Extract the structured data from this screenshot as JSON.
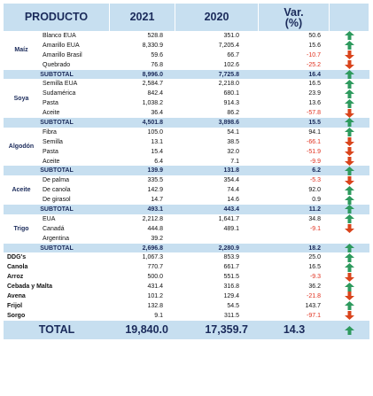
{
  "headers": {
    "product": "PRODUCTO",
    "y2021": "2021",
    "y2020": "2020",
    "var_line1": "Var.",
    "var_line2": "(%)"
  },
  "colors": {
    "header_bg": "#c7dff0",
    "up_arrow": "#2e9a5e",
    "down_arrow": "#d9441c",
    "negative_text": "#e0301e"
  },
  "groups": [
    {
      "name": "Maíz",
      "items": [
        {
          "label": "Blanco EUA",
          "v2021": "528.8",
          "v2020": "351.0",
          "var": "50.6",
          "dir": "up"
        },
        {
          "label": "Amarillo EUA",
          "v2021": "8,330.9",
          "v2020": "7,205.4",
          "var": "15.6",
          "dir": "up"
        },
        {
          "label": "Amarillo Brasil",
          "v2021": "59.6",
          "v2020": "66.7",
          "var": "-10.7",
          "dir": "down"
        },
        {
          "label": "Quebrado",
          "v2021": "76.8",
          "v2020": "102.6",
          "var": "-25.2",
          "dir": "down"
        }
      ],
      "subtotal": {
        "label": "SUBTOTAL",
        "v2021": "8,996.0",
        "v2020": "7,725.8",
        "var": "16.4",
        "dir": "up"
      }
    },
    {
      "name": "Soya",
      "items": [
        {
          "label": "Semilla EUA",
          "v2021": "2,584.7",
          "v2020": "2,218.0",
          "var": "16.5",
          "dir": "up"
        },
        {
          "label": "Sudamérica",
          "v2021": "842.4",
          "v2020": "680.1",
          "var": "23.9",
          "dir": "up"
        },
        {
          "label": "Pasta",
          "v2021": "1,038.2",
          "v2020": "914.3",
          "var": "13.6",
          "dir": "up"
        },
        {
          "label": "Aceite",
          "v2021": "36.4",
          "v2020": "86.2",
          "var": "-57.8",
          "dir": "down"
        }
      ],
      "subtotal": {
        "label": "SUBTOTAL",
        "v2021": "4,501.8",
        "v2020": "3,898.6",
        "var": "15.5",
        "dir": "up"
      }
    },
    {
      "name": "Algodón",
      "items": [
        {
          "label": "Fibra",
          "v2021": "105.0",
          "v2020": "54.1",
          "var": "94.1",
          "dir": "up"
        },
        {
          "label": "Semilla",
          "v2021": "13.1",
          "v2020": "38.5",
          "var": "-66.1",
          "dir": "down"
        },
        {
          "label": "Pasta",
          "v2021": "15.4",
          "v2020": "32.0",
          "var": "-51.9",
          "dir": "down"
        },
        {
          "label": "Aceite",
          "v2021": "6.4",
          "v2020": "7.1",
          "var": "-9.9",
          "dir": "down"
        }
      ],
      "subtotal": {
        "label": "SUBTOTAL",
        "v2021": "139.9",
        "v2020": "131.8",
        "var": "6.2",
        "dir": "up"
      }
    },
    {
      "name": "Aceite",
      "items": [
        {
          "label": "De palma",
          "v2021": "335.5",
          "v2020": "354.4",
          "var": "-5.3",
          "dir": "down"
        },
        {
          "label": "De canola",
          "v2021": "142.9",
          "v2020": "74.4",
          "var": "92.0",
          "dir": "up"
        },
        {
          "label": "De girasol",
          "v2021": "14.7",
          "v2020": "14.6",
          "var": "0.9",
          "dir": "up"
        }
      ],
      "subtotal": {
        "label": "SUBTOTAL",
        "v2021": "493.1",
        "v2020": "443.4",
        "var": "11.2",
        "dir": "up"
      }
    },
    {
      "name": "Trigo",
      "items": [
        {
          "label": "EUA",
          "v2021": "2,212.8",
          "v2020": "1,641.7",
          "var": "34.8",
          "dir": "up"
        },
        {
          "label": "Canadá",
          "v2021": "444.8",
          "v2020": "489.1",
          "var": "-9.1",
          "dir": "down"
        },
        {
          "label": "Argentina",
          "v2021": "39.2",
          "v2020": "",
          "var": "",
          "dir": ""
        }
      ],
      "subtotal": {
        "label": "SUBTOTAL",
        "v2021": "2,696.8",
        "v2020": "2,280.9",
        "var": "18.2",
        "dir": "up"
      }
    }
  ],
  "others": [
    {
      "label": "DDG's",
      "v2021": "1,067.3",
      "v2020": "853.9",
      "var": "25.0",
      "dir": "up"
    },
    {
      "label": "Canola",
      "v2021": "770.7",
      "v2020": "661.7",
      "var": "16.5",
      "dir": "up"
    },
    {
      "label": "Arroz",
      "v2021": "500.0",
      "v2020": "551.5",
      "var": "-9.3",
      "dir": "down"
    },
    {
      "label": "Cebada y Malta",
      "v2021": "431.4",
      "v2020": "316.8",
      "var": "36.2",
      "dir": "up"
    },
    {
      "label": "Avena",
      "v2021": "101.2",
      "v2020": "129.4",
      "var": "-21.8",
      "dir": "down"
    },
    {
      "label": "Frijol",
      "v2021": "132.8",
      "v2020": "54.5",
      "var": "143.7",
      "dir": "up"
    },
    {
      "label": "Sorgo",
      "v2021": "9.1",
      "v2020": "311.5",
      "var": "-97.1",
      "dir": "down"
    }
  ],
  "total": {
    "label": "TOTAL",
    "v2021": "19,840.0",
    "v2020": "17,359.7",
    "var": "14.3",
    "dir": "up"
  }
}
